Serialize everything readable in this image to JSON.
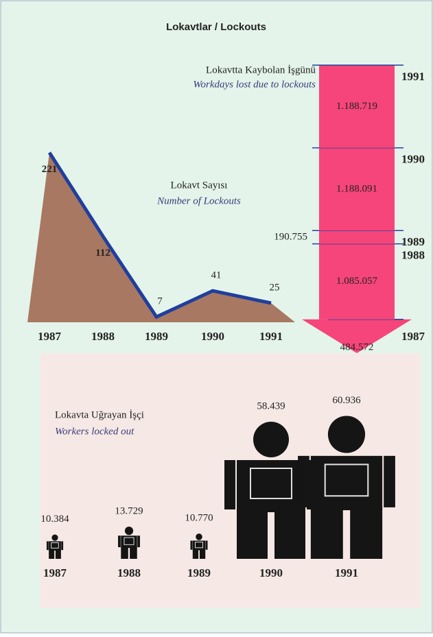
{
  "chart_data": [
    {
      "type": "area",
      "title": "Lokavt Sayısı",
      "subtitle": "Number of Lockouts",
      "categories": [
        "1987",
        "1988",
        "1989",
        "1990",
        "1991"
      ],
      "values": [
        221,
        112,
        7,
        41,
        25
      ],
      "color": "#a87862",
      "line_color": "#1f3f9e"
    },
    {
      "type": "arrow",
      "title": "Lokavtta Kaybolan İşgünü",
      "subtitle": "Workdays lost due to lockouts",
      "categories": [
        "1987",
        "1988",
        "1989",
        "1990",
        "1991"
      ],
      "values": [
        484572,
        1085057,
        190755,
        1188091,
        1188719
      ],
      "value_labels": [
        "484.572",
        "1.085.057",
        "190.755",
        "1.188.091",
        "1.188.719"
      ],
      "color": "#f5457a"
    },
    {
      "type": "pictogram",
      "title": "Lokavta Uğrayan İşçi",
      "subtitle": "Workers locked out",
      "categories": [
        "1987",
        "1988",
        "1989",
        "1990",
        "1991"
      ],
      "values": [
        10384,
        13729,
        10770,
        58439,
        60936
      ],
      "value_labels": [
        "10.384",
        "13.729",
        "10.770",
        "58.439",
        "60.936"
      ],
      "color": "#151515"
    }
  ],
  "title": "Lokavtlar / Lockouts"
}
